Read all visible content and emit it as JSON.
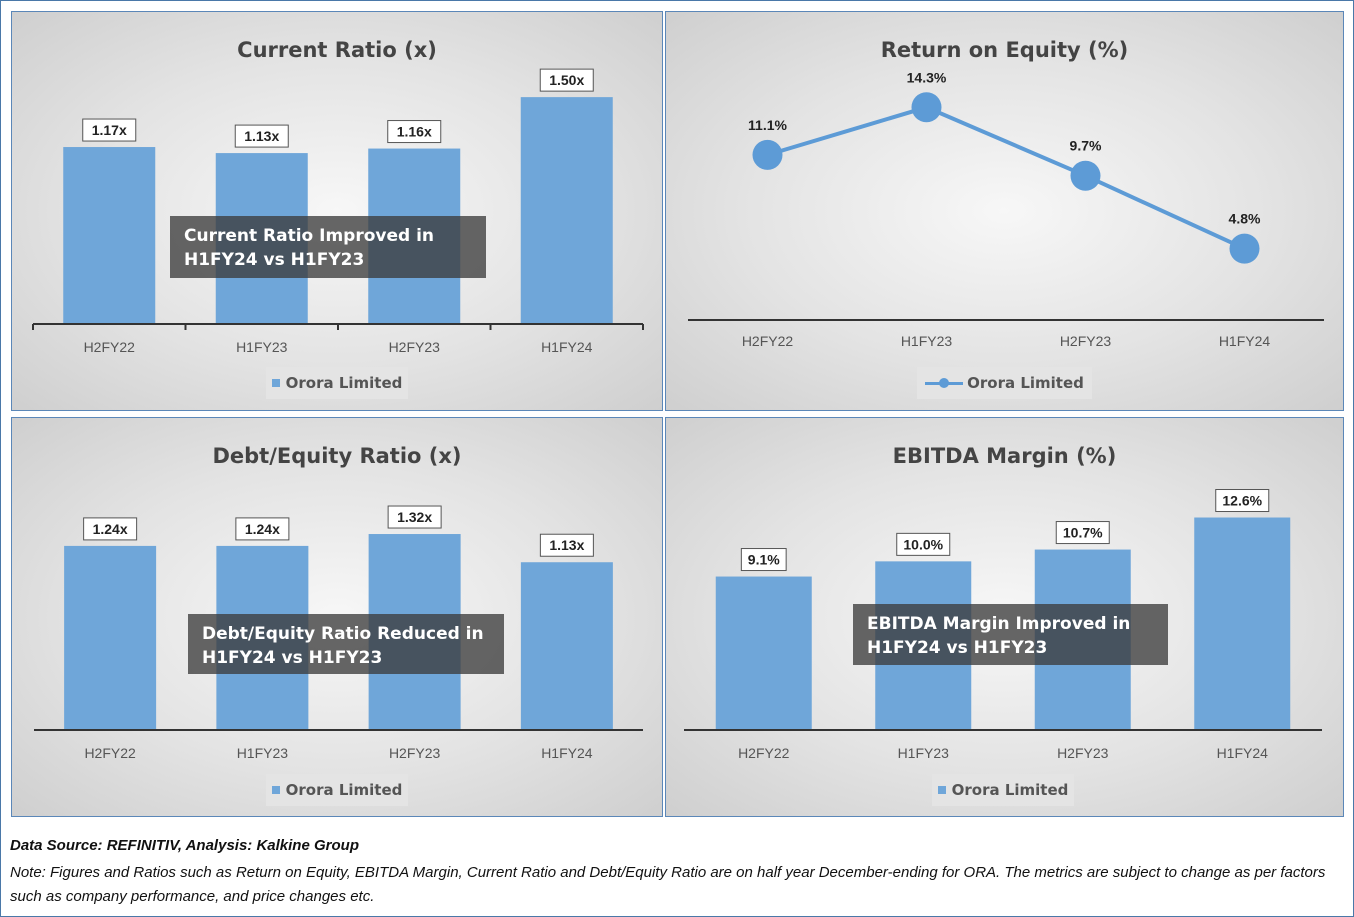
{
  "legend_label": "Orora Limited",
  "colors": {
    "bar": "#6fa6d9",
    "line": "#5d9bd6",
    "axis": "#444444",
    "text": "#555555"
  },
  "chart_data": [
    {
      "type": "bar",
      "title": "Current Ratio (x)",
      "categories": [
        "H2FY22",
        "H1FY23",
        "H2FY23",
        "H1FY24"
      ],
      "series": [
        {
          "name": "Orora Limited",
          "values": [
            1.17,
            1.13,
            1.16,
            1.5
          ]
        }
      ],
      "data_labels": [
        "1.17x",
        "1.13x",
        "1.16x",
        "1.50x"
      ],
      "annotation": "Current Ratio Improved in H1FY24 vs H1FY23",
      "ylim": [
        0,
        1.6
      ],
      "legend": "bottom"
    },
    {
      "type": "line",
      "title": "Return on Equity (%)",
      "categories": [
        "H2FY22",
        "H1FY23",
        "H2FY23",
        "H1FY24"
      ],
      "series": [
        {
          "name": "Orora Limited",
          "values": [
            11.1,
            14.3,
            9.7,
            4.8
          ]
        }
      ],
      "data_labels": [
        "11.1%",
        "14.3%",
        "9.7%",
        "4.8%"
      ],
      "ylim": [
        0,
        16
      ],
      "legend": "bottom"
    },
    {
      "type": "bar",
      "title": "Debt/Equity Ratio (x)",
      "categories": [
        "H2FY22",
        "H1FY23",
        "H2FY23",
        "H1FY24"
      ],
      "series": [
        {
          "name": "Orora Limited",
          "values": [
            1.24,
            1.24,
            1.32,
            1.13
          ]
        }
      ],
      "data_labels": [
        "1.24x",
        "1.24x",
        "1.32x",
        "1.13x"
      ],
      "annotation": "Debt/Equity Ratio Reduced in H1FY24 vs H1FY23",
      "ylim": [
        0,
        1.63
      ],
      "legend": "bottom"
    },
    {
      "type": "bar",
      "title": "EBITDA Margin (%)",
      "categories": [
        "H2FY22",
        "H1FY23",
        "H2FY23",
        "H1FY24"
      ],
      "series": [
        {
          "name": "Orora Limited",
          "values": [
            9.1,
            10.0,
            10.7,
            12.6
          ]
        }
      ],
      "data_labels": [
        "9.1%",
        "10.0%",
        "10.7%",
        "12.6%"
      ],
      "annotation": "EBITDA Margin Improved in H1FY24 vs H1FY23",
      "ylim": [
        0,
        14.35
      ],
      "legend": "bottom"
    }
  ],
  "footer": {
    "source": "Data Source: REFINITIV, Analysis: Kalkine Group",
    "note": "Note: Figures and Ratios such as Return on Equity, EBITDA Margin, Current Ratio and Debt/Equity Ratio are on half year December-ending for ORA. The metrics are subject to change as per factors such as company performance, and price changes etc."
  }
}
